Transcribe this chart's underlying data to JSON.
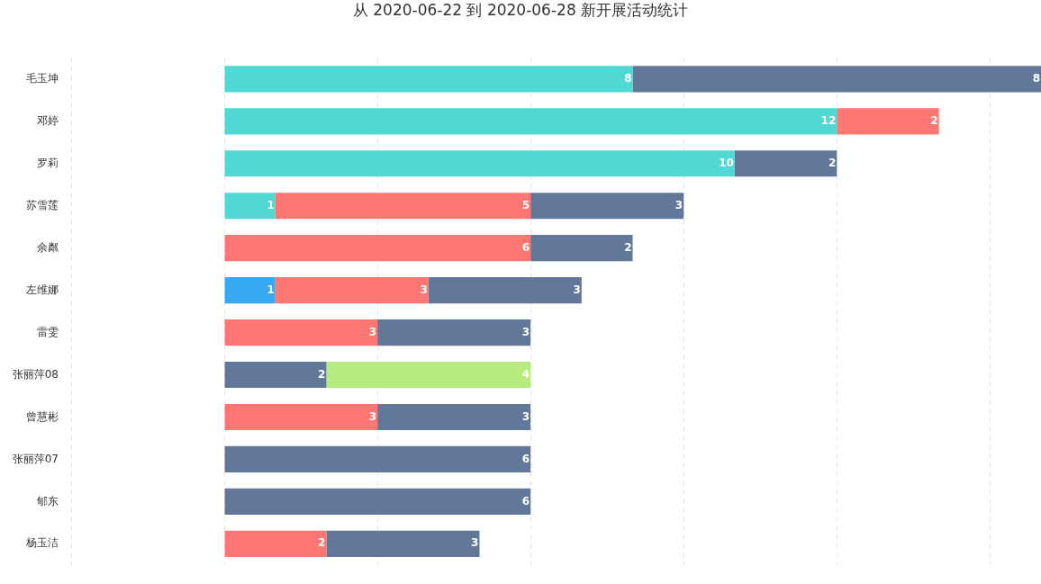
{
  "chart_data": {
    "type": "bar",
    "orientation": "horizontal",
    "stacked": true,
    "title": "从 2020-06-22 到 2020-06-28 新开展活动统计",
    "categories": [
      "毛玉坤",
      "邓婷",
      "罗莉",
      "苏雪莲",
      "余粼",
      "左维娜",
      "雷雯",
      "张丽萍08",
      "曾慧彬",
      "张丽萍07",
      "郇东",
      "杨玉洁"
    ],
    "series": [
      {
        "color": "#4fd8d4",
        "values": [
          8,
          12,
          10,
          1,
          null,
          null,
          null,
          null,
          null,
          null,
          null,
          null
        ]
      },
      {
        "color": "#36a9f2",
        "values": [
          null,
          null,
          null,
          null,
          null,
          1,
          null,
          null,
          null,
          null,
          null,
          null
        ]
      },
      {
        "color": "#ff7673",
        "values": [
          null,
          2,
          null,
          5,
          6,
          3,
          3,
          null,
          3,
          null,
          null,
          2
        ]
      },
      {
        "color": "#627898",
        "values": [
          8,
          null,
          2,
          3,
          2,
          3,
          3,
          2,
          3,
          6,
          6,
          3
        ]
      },
      {
        "color": "#b8eb7f",
        "values": [
          null,
          null,
          null,
          null,
          null,
          null,
          null,
          4,
          null,
          null,
          null,
          null
        ]
      }
    ],
    "xticks": [
      {
        "value": -3,
        "label": null
      },
      {
        "value": 0,
        "label": null
      },
      {
        "value": 3,
        "label": null
      },
      {
        "value": 6,
        "label": null
      },
      {
        "value": 9,
        "label": null
      },
      {
        "value": 12,
        "label": null
      },
      {
        "value": 15,
        "label": null
      }
    ],
    "tick_labels": "y",
    "grid": "x",
    "legend": false,
    "data_labels": true
  }
}
